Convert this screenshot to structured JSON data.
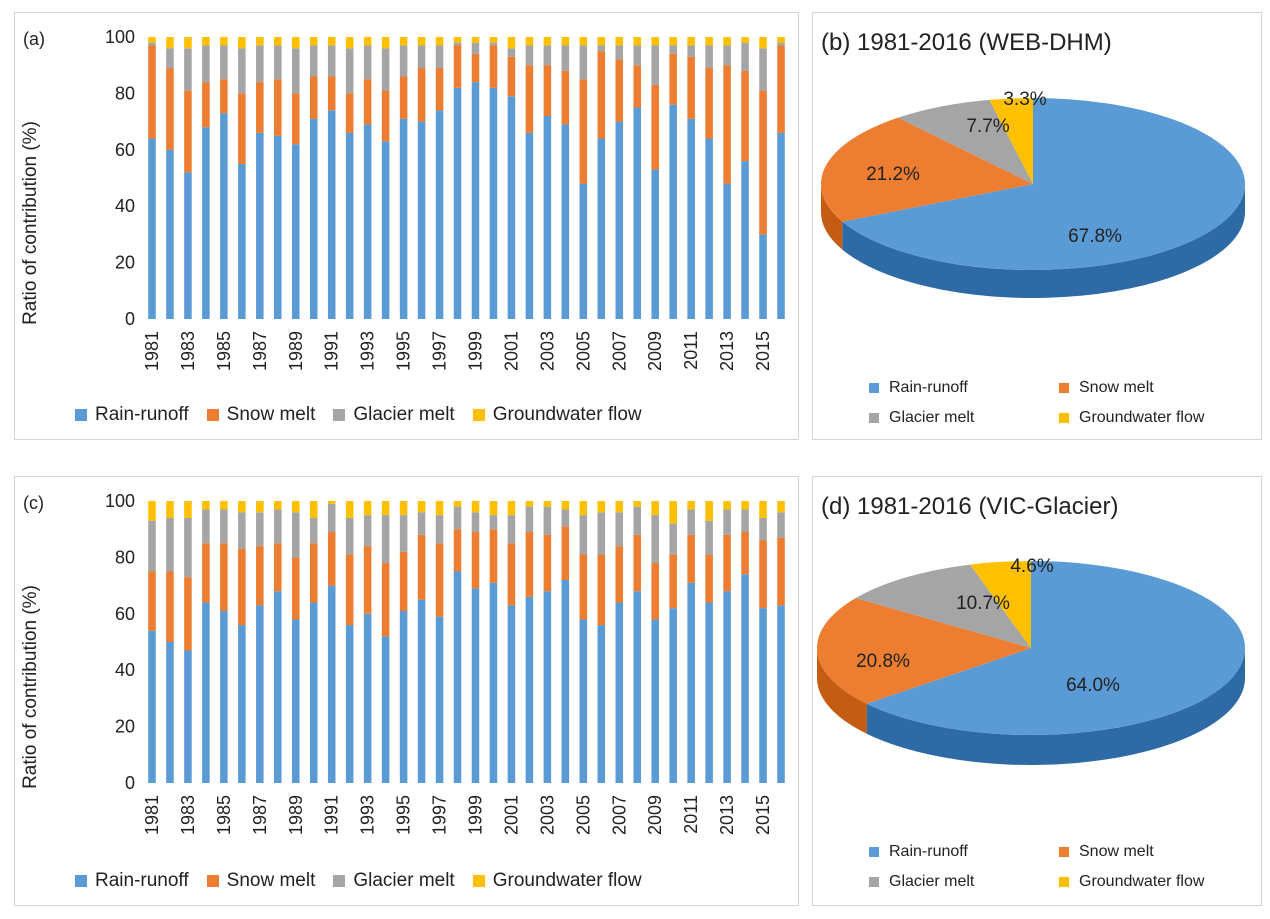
{
  "colors": {
    "rain": "#5b9bd5",
    "snow": "#ed7d31",
    "glacier": "#a5a5a5",
    "groundwater": "#ffc000",
    "rain_side": "#2e6aa6",
    "snow_side": "#c45c14",
    "glacier_side": "#7a7a7a",
    "groundwater_side": "#c89600"
  },
  "legend": [
    "Rain-runoff",
    "Snow melt",
    "Glacier melt",
    "Groundwater flow"
  ],
  "chart_data": [
    {
      "type": "bar",
      "stacked": true,
      "panel": "(a)",
      "ylabel": "Ratio of contribution (%)",
      "ylim": [
        0,
        100
      ],
      "yticks": [
        "0",
        "20",
        "40",
        "60",
        "80",
        "100"
      ],
      "xtick_labels": [
        "1981",
        "1983",
        "1985",
        "1987",
        "1989",
        "1991",
        "1993",
        "1995",
        "1997",
        "1999",
        "2001",
        "2003",
        "2005",
        "2007",
        "2009",
        "2011",
        "2013",
        "2015"
      ],
      "categories": [
        "1981",
        "1982",
        "1983",
        "1984",
        "1985",
        "1986",
        "1987",
        "1988",
        "1989",
        "1990",
        "1991",
        "1992",
        "1993",
        "1994",
        "1995",
        "1996",
        "1997",
        "1998",
        "1999",
        "2000",
        "2001",
        "2002",
        "2003",
        "2004",
        "2005",
        "2006",
        "2007",
        "2008",
        "2009",
        "2010",
        "2011",
        "2012",
        "2013",
        "2014",
        "2015",
        "2016"
      ],
      "series": [
        {
          "name": "Rain-runoff",
          "values": [
            64,
            60,
            52,
            68,
            73,
            55,
            66,
            65,
            62,
            71,
            74,
            66,
            69,
            63,
            71,
            70,
            74,
            82,
            84,
            82,
            79,
            66,
            72,
            69,
            48,
            64,
            70,
            75,
            53,
            76,
            71,
            64,
            48,
            56,
            30,
            66
          ]
        },
        {
          "name": "Snow melt",
          "values": [
            33,
            29,
            29,
            16,
            12,
            25,
            18,
            20,
            18,
            15,
            12,
            14,
            16,
            18,
            15,
            19,
            15,
            15,
            10,
            15,
            14,
            24,
            18,
            19,
            37,
            31,
            22,
            15,
            30,
            18,
            22,
            25,
            42,
            32,
            51,
            31
          ]
        },
        {
          "name": "Glacier melt",
          "values": [
            1,
            7,
            15,
            13,
            12,
            16,
            13,
            12,
            16,
            11,
            11,
            16,
            12,
            15,
            11,
            8,
            8,
            1,
            4,
            1,
            3,
            7,
            7,
            9,
            12,
            2,
            5,
            7,
            14,
            3,
            4,
            8,
            7,
            10,
            15,
            1
          ]
        },
        {
          "name": "Groundwater flow",
          "values": [
            2,
            4,
            4,
            3,
            3,
            4,
            3,
            3,
            4,
            3,
            3,
            4,
            3,
            4,
            3,
            3,
            3,
            2,
            2,
            2,
            4,
            3,
            3,
            3,
            3,
            3,
            3,
            3,
            3,
            3,
            3,
            3,
            3,
            2,
            4,
            2
          ]
        }
      ]
    },
    {
      "type": "pie",
      "title": "(b) 1981-2016 (WEB-DHM)",
      "labels": [
        "Rain-runoff",
        "Snow melt",
        "Glacier melt",
        "Groundwater flow"
      ],
      "values": [
        67.8,
        21.2,
        7.7,
        3.3
      ],
      "value_labels": [
        "67.8%",
        "21.2%",
        "7.7%",
        "3.3%"
      ]
    },
    {
      "type": "bar",
      "stacked": true,
      "panel": "(c)",
      "ylabel": "Ratio of contribution (%)",
      "ylim": [
        0,
        100
      ],
      "yticks": [
        "0",
        "20",
        "40",
        "60",
        "80",
        "100"
      ],
      "xtick_labels": [
        "1981",
        "1983",
        "1985",
        "1987",
        "1989",
        "1991",
        "1993",
        "1995",
        "1997",
        "1999",
        "2001",
        "2003",
        "2005",
        "2007",
        "2009",
        "2011",
        "2013",
        "2015"
      ],
      "categories": [
        "1981",
        "1982",
        "1983",
        "1984",
        "1985",
        "1986",
        "1987",
        "1988",
        "1989",
        "1990",
        "1991",
        "1992",
        "1993",
        "1994",
        "1995",
        "1996",
        "1997",
        "1998",
        "1999",
        "2000",
        "2001",
        "2002",
        "2003",
        "2004",
        "2005",
        "2006",
        "2007",
        "2008",
        "2009",
        "2010",
        "2011",
        "2012",
        "2013",
        "2014",
        "2015",
        "2016"
      ],
      "series": [
        {
          "name": "Rain-runoff",
          "values": [
            54,
            50,
            47,
            64,
            61,
            56,
            63,
            68,
            58,
            64,
            70,
            56,
            60,
            52,
            61,
            65,
            59,
            75,
            69,
            71,
            63,
            66,
            68,
            72,
            58,
            56,
            64,
            68,
            58,
            62,
            71,
            64,
            68,
            74,
            62,
            63
          ]
        },
        {
          "name": "Snow melt",
          "values": [
            21,
            25,
            26,
            21,
            24,
            27,
            21,
            17,
            22,
            21,
            19,
            25,
            24,
            26,
            21,
            23,
            26,
            15,
            20,
            19,
            22,
            23,
            20,
            19,
            23,
            25,
            20,
            20,
            20,
            19,
            17,
            17,
            20,
            15,
            24,
            24
          ]
        },
        {
          "name": "Glacier melt",
          "values": [
            18,
            19,
            21,
            12,
            12,
            13,
            12,
            12,
            16,
            9,
            10,
            13,
            11,
            17,
            13,
            8,
            10,
            8,
            7,
            5,
            10,
            9,
            10,
            6,
            14,
            15,
            12,
            10,
            17,
            11,
            9,
            12,
            9,
            8,
            8,
            9
          ]
        },
        {
          "name": "Groundwater flow",
          "values": [
            7,
            6,
            6,
            3,
            3,
            4,
            4,
            3,
            4,
            6,
            1,
            6,
            5,
            5,
            5,
            4,
            5,
            2,
            4,
            5,
            5,
            2,
            2,
            3,
            5,
            4,
            4,
            2,
            5,
            8,
            3,
            7,
            3,
            3,
            6,
            4
          ]
        }
      ]
    },
    {
      "type": "pie",
      "title": "(d) 1981-2016 (VIC-Glacier)",
      "labels": [
        "Rain-runoff",
        "Snow melt",
        "Glacier melt",
        "Groundwater flow"
      ],
      "values": [
        64.0,
        20.8,
        10.7,
        4.6
      ],
      "value_labels": [
        "64.0%",
        "20.8%",
        "10.7%",
        "4.6%"
      ]
    }
  ]
}
